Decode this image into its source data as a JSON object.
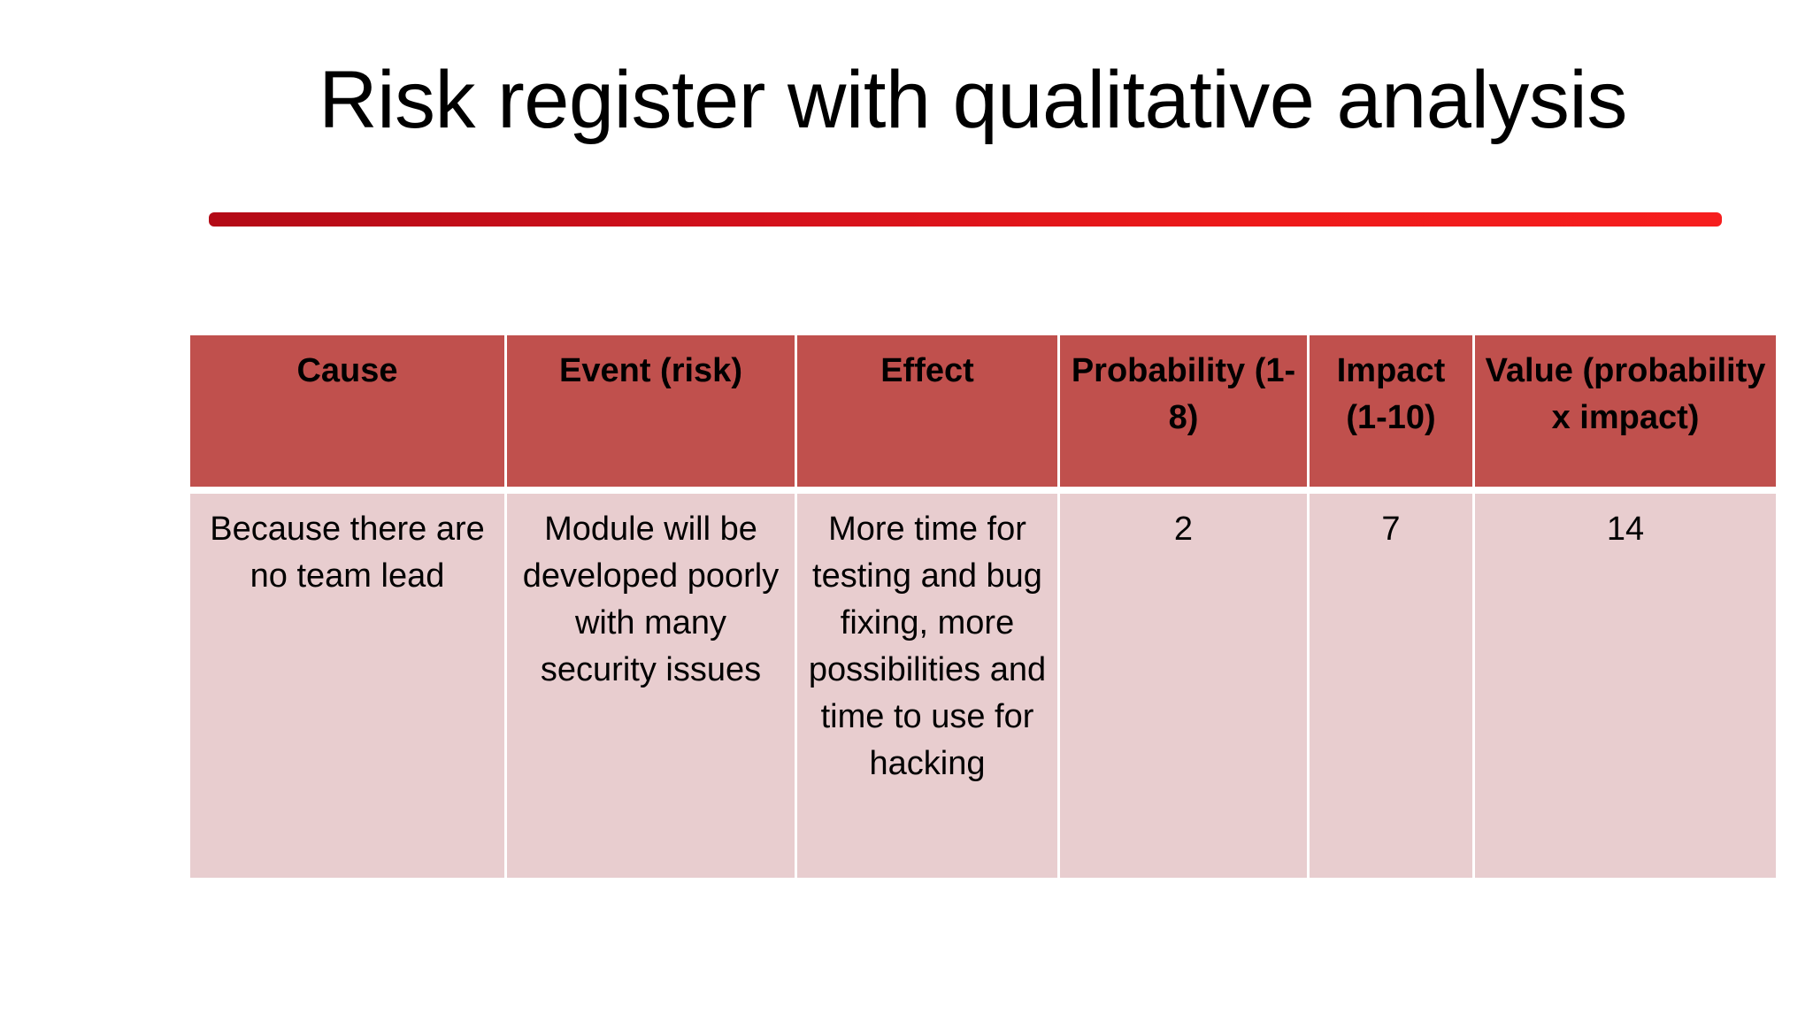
{
  "slide": {
    "title": "Risk register with qualitative analysis"
  },
  "colors": {
    "rule_gradient_start": "#b30a16",
    "rule_gradient_end": "#f61e1e",
    "header_fill": "#c0504d",
    "body_fill": "#e8cdcf"
  },
  "table": {
    "headers": [
      "Cause",
      "Event (risk)",
      "Effect",
      "Probability (1-8)",
      "Impact (1-10)",
      "Value (probability x impact)"
    ],
    "rows": [
      [
        "Because there are no team lead",
        "Module will be developed poorly with many security issues",
        "More time for testing and bug fixing, more possibilities and time to use for hacking",
        "2",
        "7",
        "14"
      ]
    ]
  }
}
